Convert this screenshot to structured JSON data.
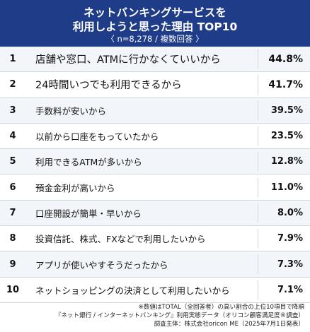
{
  "header": {
    "title_line1": "ネットバンキングサービスを",
    "title_line2": "利用しようと思った理由 TOP10",
    "subtitle": "〈 n=8,278 / 複数回答 〉"
  },
  "chart_data": {
    "type": "table",
    "title": "ネットバンキングサービスを 利用しようと思った理由 TOP10",
    "subtitle": "〈 n=8,278 / 複数回答 〉",
    "rows": [
      {
        "rank": "1",
        "label": "店舗や窓口、ATMに行かなくていいから",
        "value": "44.8%"
      },
      {
        "rank": "2",
        "label": "24時間いつでも利用できるから",
        "value": "41.7%"
      },
      {
        "rank": "3",
        "label": "手数料が安いから",
        "value": "39.5%"
      },
      {
        "rank": "4",
        "label": "以前から口座をもっていたから",
        "value": "23.5%"
      },
      {
        "rank": "5",
        "label": "利用できるATMが多いから",
        "value": "12.8%"
      },
      {
        "rank": "6",
        "label": "預金金利が高いから",
        "value": "11.0%"
      },
      {
        "rank": "7",
        "label": "口座開設が簡単・早いから",
        "value": "8.0%"
      },
      {
        "rank": "8",
        "label": "投資信託、株式、FXなどで利用したいから",
        "value": "7.9%"
      },
      {
        "rank": "9",
        "label": "アプリが使いやすそうだったから",
        "value": "7.3%"
      },
      {
        "rank": "10",
        "label": "ネットショッピングの決済として利用したいから",
        "value": "7.1%"
      }
    ]
  },
  "footer": {
    "line1": "※数値はTOTAL（全回答者）の高い割合の上位10項目で降順",
    "line2": "『ネット銀行 / インターネットバンキング』利用実態データ（オリコン顧客満足度®調査）",
    "line3": "調査主体：株式会社oricon ME（2025年7月1日発表）"
  }
}
